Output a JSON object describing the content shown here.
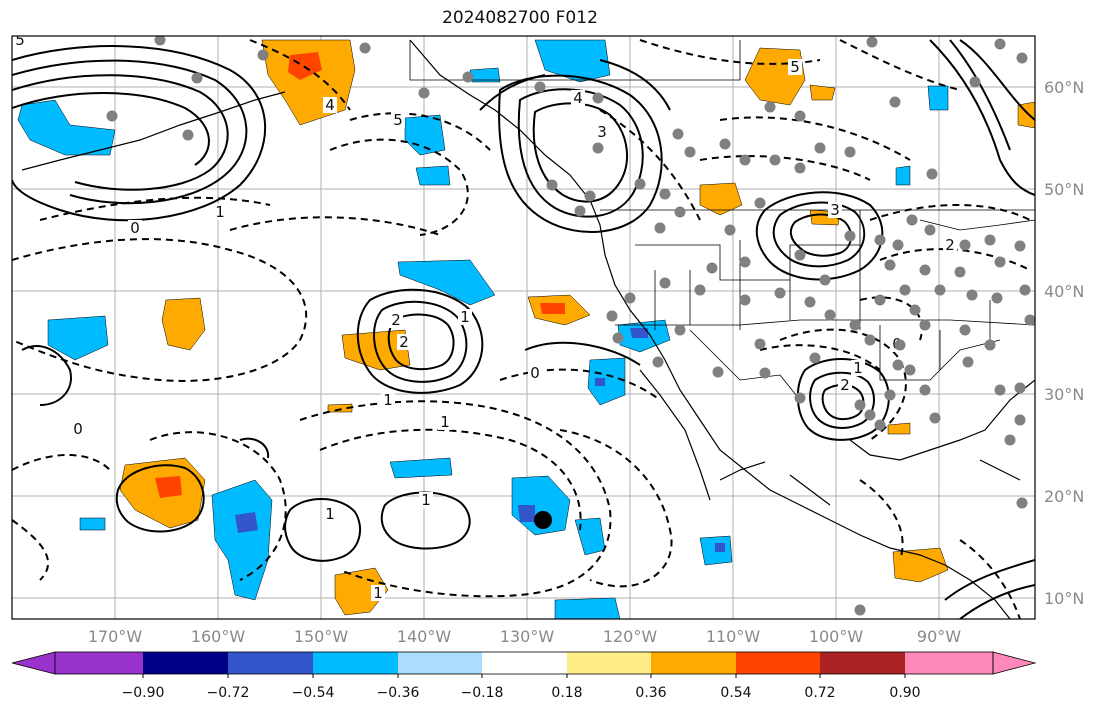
{
  "title": "2024082700 F012",
  "lat_labels": [
    "60°N",
    "50°N",
    "40°N",
    "30°N",
    "20°N",
    "10°N"
  ],
  "lon_labels": [
    "170°W",
    "160°W",
    "150°W",
    "140°W",
    "130°W",
    "120°W",
    "110°W",
    "100°W",
    "90°W"
  ],
  "colorbar": {
    "ticks": [
      "−0.90",
      "−0.72",
      "−0.54",
      "−0.36",
      "−0.18",
      "0.18",
      "0.36",
      "0.54",
      "0.72",
      "0.90"
    ],
    "colors": [
      "#9933cc",
      "#000088",
      "#3355cc",
      "#00bbff",
      "#aaddff",
      "#ffffff",
      "#ffee88",
      "#ffaa00",
      "#ff4400",
      "#aa2222",
      "#ff88bb"
    ]
  },
  "contour_labels": [
    "5",
    "4",
    "5",
    "4",
    "3",
    "0",
    "1",
    "2",
    "2",
    "1",
    "0",
    "0",
    "1",
    "1",
    "1",
    "1",
    "1",
    "2",
    "0",
    "1",
    "3",
    "2",
    "5"
  ],
  "colors": {
    "positive_fill": "#ffaa00",
    "negative_fill": "#00bbff",
    "station": "#808080"
  }
}
